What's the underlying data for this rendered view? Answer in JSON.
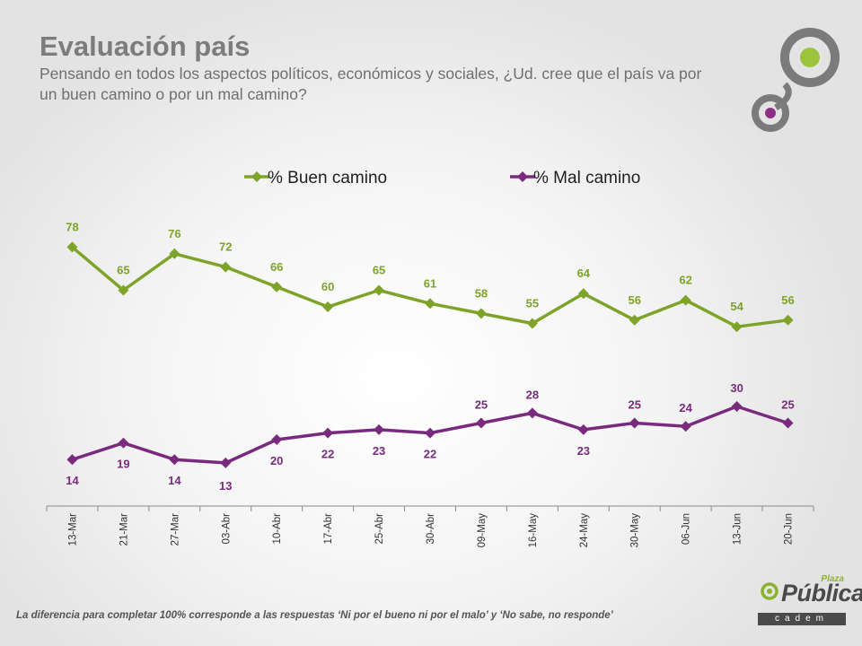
{
  "header": {
    "title": "Evaluación país",
    "subtitle": "Pensando en todos los aspectos políticos, económicos y sociales, ¿Ud. cree que el país va por un buen camino o por un mal camino?"
  },
  "colors": {
    "buen": "#7da428",
    "mal": "#7a2a7e",
    "deco_ring": "#7b7b7b",
    "deco_green": "#9cc43a",
    "deco_purple": "#8e2f86"
  },
  "chart_data": {
    "type": "line",
    "categories": [
      "13-Mar",
      "21-Mar",
      "27-Mar",
      "03-Abr",
      "10-Abr",
      "17-Abr",
      "25-Abr",
      "30-Abr",
      "09-May",
      "16-May",
      "24-May",
      "30-May",
      "06-Jun",
      "13-Jun",
      "20-Jun"
    ],
    "series": [
      {
        "name": "% Buen camino",
        "values": [
          78,
          65,
          76,
          72,
          66,
          60,
          65,
          61,
          58,
          55,
          64,
          56,
          62,
          54,
          56
        ]
      },
      {
        "name": "% Mal camino",
        "values": [
          14,
          19,
          14,
          13,
          20,
          22,
          23,
          22,
          25,
          28,
          23,
          25,
          24,
          30,
          25
        ]
      }
    ],
    "ylim": [
      0,
      100
    ],
    "legend_position": "top",
    "grid": false
  },
  "footnote": "La diferencia para completar 100% corresponde a las respuestas ‘Ni por el bueno ni por el malo’ y ‘No sabe, no responde’",
  "brand": {
    "logo_text": "Pública",
    "logo_top": "Plaza",
    "logo_bottom": "cadem"
  }
}
